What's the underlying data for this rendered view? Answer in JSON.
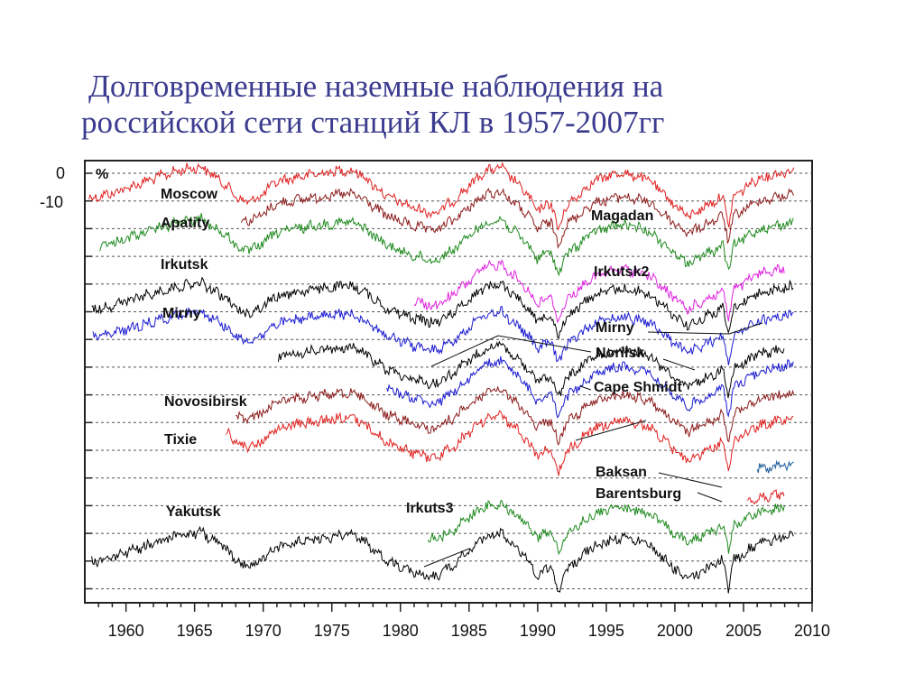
{
  "title": {
    "line1": "Долговременные наземные наблюдения на",
    "line2": "российской сети станций КЛ в 1957-2007гг"
  },
  "chart_data": {
    "type": "line",
    "title": "Долговременные наземные наблюдения на российской сети станций КЛ в 1957-2007гг",
    "xlabel": "",
    "ylabel": "%",
    "xlim": [
      1957,
      2010
    ],
    "x_ticks": [
      "1960",
      "1965",
      "1970",
      "1975",
      "1980",
      "1985",
      "1990",
      "1995",
      "2000",
      "2005",
      "2010"
    ],
    "y_ticks": [
      "0",
      "-10"
    ],
    "grid": "horizontal dashed",
    "series": [
      {
        "name": "Moscow",
        "color": "#e02020",
        "start": 1957.3,
        "end": 2008.7,
        "base_row": 0
      },
      {
        "name": "Magadan",
        "color": "#8b1a1a",
        "start": 1968.4,
        "end": 2008.7,
        "base_row": 1
      },
      {
        "name": "Apatity",
        "color": "#1f8a1f",
        "start": 1958.1,
        "end": 2008.7,
        "base_row": 2
      },
      {
        "name": "Irkutsk2",
        "color": "#e020e0",
        "start": 1981.0,
        "end": 2008.0,
        "base_row": 3
      },
      {
        "name": "Irkutsk",
        "color": "#000000",
        "start": 1957.5,
        "end": 2008.7,
        "base_row": 4
      },
      {
        "name": "Mirny",
        "color": "#1a1ad0",
        "start": 1957.6,
        "end": 2008.7,
        "base_row": 5
      },
      {
        "name": "Norilsk",
        "color": "#000000",
        "start": 1971.1,
        "end": 2008.0,
        "base_row": 6
      },
      {
        "name": "Cape Shmidt",
        "color": "#1a1ad0",
        "start": 1979.0,
        "end": 2008.7,
        "base_row": 7
      },
      {
        "name": "Novosibirsk",
        "color": "#8b1a1a",
        "start": 1968.0,
        "end": 2008.7,
        "base_row": 8
      },
      {
        "name": "Tixie",
        "color": "#e02020",
        "start": 1967.3,
        "end": 2008.7,
        "base_row": 9
      },
      {
        "name": "Baksan",
        "color": "#1a5a9a",
        "start": 2006.0,
        "end": 2008.7,
        "base_row": 10
      },
      {
        "name": "Barentsburg",
        "color": "#e02020",
        "start": 2005.3,
        "end": 2008.0,
        "base_row": 11
      },
      {
        "name": "Irkuts3",
        "color": "#1f8a1f",
        "start": 1982.0,
        "end": 2008.0,
        "base_row": 12
      },
      {
        "name": "Yakutsk",
        "color": "#000000",
        "start": 1957.5,
        "end": 2008.7,
        "base_row": 13
      }
    ]
  },
  "labels": {
    "percent": "%",
    "moscow": "Moscow",
    "apatity": "Apatity",
    "irkutsk": "Irkutsk",
    "mirny_left": "Mirny",
    "novosibirsk": "Novosibirsk",
    "tixie": "Tixie",
    "yakutsk": "Yakutsk",
    "irkuts3": "Irkuts3",
    "magadan": "Magadan",
    "irkutsk2": "Irkutsk2",
    "mirny_right": "Mirny",
    "norilsk": "Norilsk",
    "cape_shmidt": "Cape Shmidt",
    "baksan": "Baksan",
    "barentsburg": "Barentsburg"
  },
  "axis": {
    "y0": "0",
    "y10": "-10"
  }
}
